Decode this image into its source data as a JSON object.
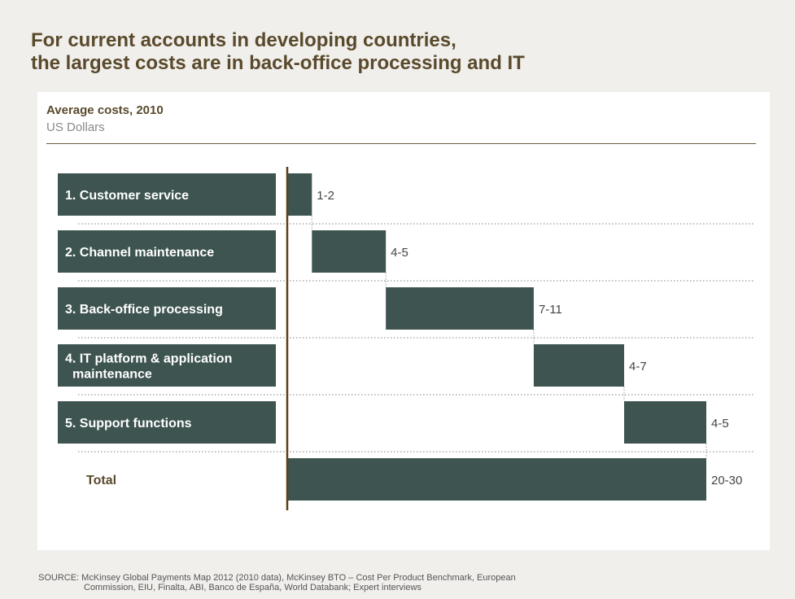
{
  "title": {
    "line1": "For current accounts in developing countries,",
    "line2": "the largest costs are in back-office processing and IT"
  },
  "colors": {
    "title": "#5a4a2c",
    "bar": "#3d5450",
    "axis": "#5a4214",
    "background": "#f1efec"
  },
  "chart_data": {
    "type": "bar",
    "subtype": "waterfall-horizontal",
    "title": "Average costs, 2010",
    "unit": "US Dollars",
    "categories": [
      "1. Customer service",
      "2. Channel maintenance",
      "3. Back-office processing",
      "4. IT platform & application maintenance",
      "5. Support functions",
      "Total"
    ],
    "category_lines": [
      [
        "1. Customer service"
      ],
      [
        "2. Channel maintenance"
      ],
      [
        "3. Back-office processing"
      ],
      [
        "4. IT platform & application",
        "maintenance"
      ],
      [
        "5. Support functions"
      ],
      [
        "Total"
      ]
    ],
    "value_labels": [
      "1-2",
      "4-5",
      "7-11",
      "4-7",
      "4-5",
      "20-30"
    ],
    "values": [
      1.5,
      4.5,
      9,
      5.5,
      5,
      25.5
    ],
    "start": [
      0,
      1.5,
      6,
      15,
      20.5,
      0
    ],
    "end": [
      1.5,
      6,
      15,
      20.5,
      25.5,
      25.5
    ],
    "xlim": [
      0,
      25.5
    ],
    "grid": false
  },
  "source": {
    "line1": "SOURCE: McKinsey Global Payments Map 2012 (2010 data), McKinsey BTO – Cost Per Product Benchmark, European",
    "line2": "Commission, EIU, Finalta, ABI, Banco de España, World Databank; Expert interviews"
  }
}
